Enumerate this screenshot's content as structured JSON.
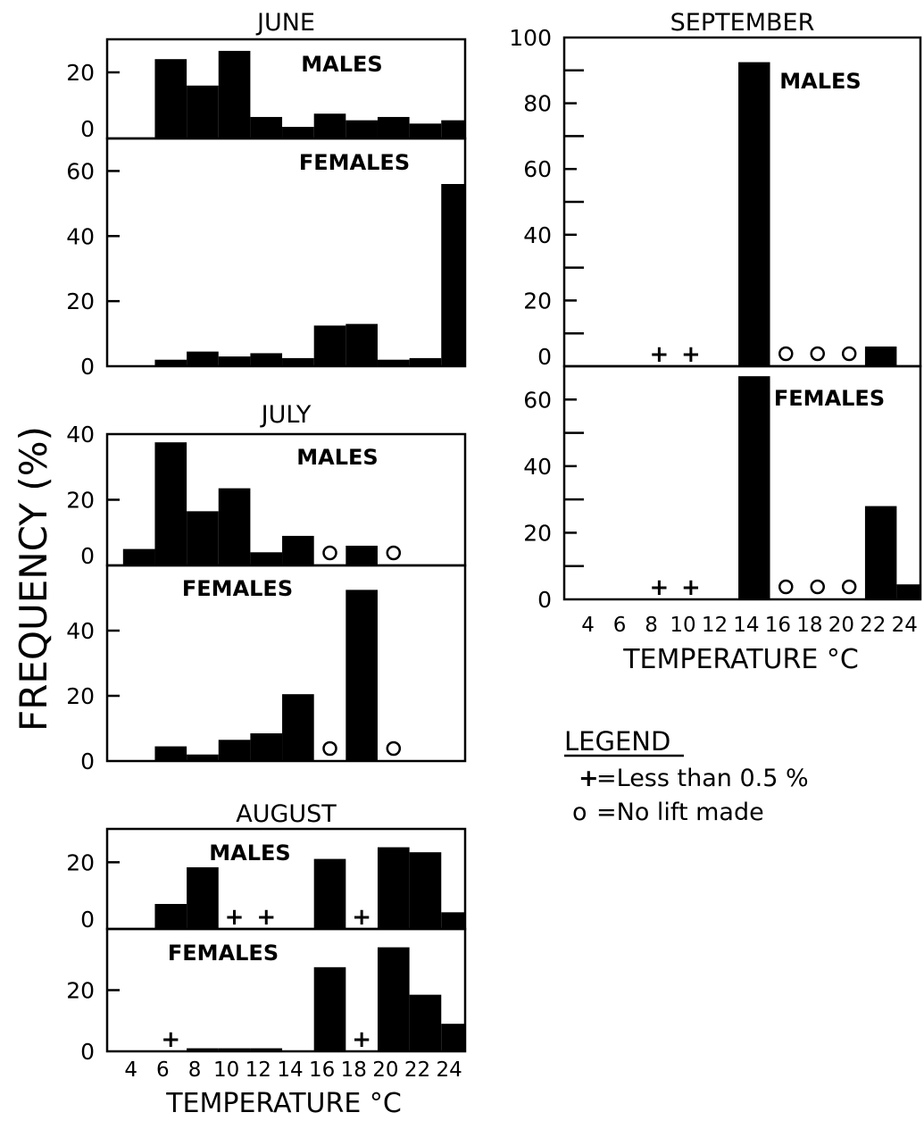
{
  "figure": {
    "ylabel": "FREQUENCY (%)",
    "xlabel": "TEMPERATURE °C",
    "legend": {
      "title": "LEGEND",
      "entries": [
        {
          "symbol": "+",
          "text": "=Less than 0.5 %"
        },
        {
          "symbol": "o",
          "text": "=No lift made"
        }
      ]
    },
    "colors": {
      "bars": "#000000",
      "background": "#ffffff"
    }
  },
  "chart_data": [
    {
      "type": "bar",
      "month": "JUNE",
      "x_ticks": [
        4,
        6,
        8,
        10,
        12,
        14,
        16,
        18,
        20,
        22,
        24
      ],
      "bar_width_c": 2,
      "panels": [
        {
          "label": "MALES",
          "ylim": [
            0,
            30
          ],
          "yticks": [
            0,
            20
          ],
          "bars": [
            {
              "x": 5,
              "value": 0
            },
            {
              "x": 7,
              "value": 24
            },
            {
              "x": 9,
              "value": 16
            },
            {
              "x": 11,
              "value": 26.5
            },
            {
              "x": 13,
              "value": 6.5
            },
            {
              "x": 15,
              "value": 3.5
            },
            {
              "x": 17,
              "value": 7.5
            },
            {
              "x": 19,
              "value": 5.5
            },
            {
              "x": 21,
              "value": 6.5
            },
            {
              "x": 23,
              "value": 4.5
            },
            {
              "x": 25,
              "value": 5.5
            }
          ],
          "markers": []
        },
        {
          "label": "FEMALES",
          "ylim": [
            0,
            70
          ],
          "yticks": [
            0,
            20,
            40,
            60
          ],
          "bars": [
            {
              "x": 5,
              "value": 0
            },
            {
              "x": 7,
              "value": 2
            },
            {
              "x": 9,
              "value": 4.5
            },
            {
              "x": 11,
              "value": 3
            },
            {
              "x": 13,
              "value": 4
            },
            {
              "x": 15,
              "value": 2.5
            },
            {
              "x": 17,
              "value": 12.5
            },
            {
              "x": 19,
              "value": 13
            },
            {
              "x": 21,
              "value": 2
            },
            {
              "x": 23,
              "value": 2.5
            },
            {
              "x": 25,
              "value": 56
            }
          ],
          "markers": []
        }
      ]
    },
    {
      "type": "bar",
      "month": "JULY",
      "x_ticks": [
        4,
        6,
        8,
        10,
        12,
        14,
        16,
        18,
        20,
        22,
        24
      ],
      "bar_width_c": 2,
      "panels": [
        {
          "label": "MALES",
          "ylim": [
            0,
            40
          ],
          "yticks": [
            0,
            20,
            40
          ],
          "bars": [
            {
              "x": 5,
              "value": 5
            },
            {
              "x": 7,
              "value": 37.5
            },
            {
              "x": 9,
              "value": 16.5
            },
            {
              "x": 11,
              "value": 23.5
            },
            {
              "x": 13,
              "value": 4
            },
            {
              "x": 15,
              "value": 9
            },
            {
              "x": 19,
              "value": 6
            }
          ],
          "markers": [
            {
              "x": 17,
              "symbol": "o"
            },
            {
              "x": 21,
              "symbol": "o"
            }
          ]
        },
        {
          "label": "FEMALES",
          "ylim": [
            0,
            60
          ],
          "yticks": [
            0,
            20,
            40
          ],
          "bars": [
            {
              "x": 5,
              "value": 0
            },
            {
              "x": 7,
              "value": 4.5
            },
            {
              "x": 9,
              "value": 2
            },
            {
              "x": 11,
              "value": 6.5
            },
            {
              "x": 13,
              "value": 8.5
            },
            {
              "x": 15,
              "value": 20.5
            },
            {
              "x": 19,
              "value": 52.5
            }
          ],
          "markers": [
            {
              "x": 17,
              "symbol": "o"
            },
            {
              "x": 21,
              "symbol": "o"
            }
          ]
        }
      ]
    },
    {
      "type": "bar",
      "month": "AUGUST",
      "x_ticks": [
        4,
        6,
        8,
        10,
        12,
        14,
        16,
        18,
        20,
        22,
        24
      ],
      "bar_width_c": 2,
      "panels": [
        {
          "label": "MALES",
          "ylim": [
            0,
            30
          ],
          "yticks": [
            0,
            20
          ],
          "bars": [
            {
              "x": 7,
              "value": 7.5
            },
            {
              "x": 9,
              "value": 18.5
            },
            {
              "x": 17,
              "value": 21
            },
            {
              "x": 21,
              "value": 24.5
            },
            {
              "x": 23,
              "value": 23
            },
            {
              "x": 25,
              "value": 5
            }
          ],
          "markers": [
            {
              "x": 11,
              "symbol": "+"
            },
            {
              "x": 13,
              "symbol": "+"
            },
            {
              "x": 19,
              "symbol": "+"
            }
          ]
        },
        {
          "label": "FEMALES",
          "ylim": [
            0,
            40
          ],
          "yticks": [
            0,
            20
          ],
          "bars": [
            {
              "x": 9,
              "value": 1
            },
            {
              "x": 11,
              "value": 1
            },
            {
              "x": 13,
              "value": 1
            },
            {
              "x": 17,
              "value": 27.5
            },
            {
              "x": 21,
              "value": 34
            },
            {
              "x": 23,
              "value": 18.5
            },
            {
              "x": 25,
              "value": 9
            }
          ],
          "markers": [
            {
              "x": 7,
              "symbol": "+"
            },
            {
              "x": 19,
              "symbol": "+"
            }
          ]
        }
      ]
    },
    {
      "type": "bar",
      "month": "SEPTEMBER",
      "x_ticks": [
        4,
        6,
        8,
        10,
        12,
        14,
        16,
        18,
        20,
        22,
        24
      ],
      "bar_width_c": 2,
      "panels": [
        {
          "label": "MALES",
          "ylim": [
            0,
            100
          ],
          "yticks": [
            0,
            20,
            40,
            60,
            80,
            100
          ],
          "bars": [
            {
              "x": 15,
              "value": 92.5
            },
            {
              "x": 23,
              "value": 6
            }
          ],
          "markers": [
            {
              "x": 9,
              "symbol": "+"
            },
            {
              "x": 11,
              "symbol": "+"
            },
            {
              "x": 17,
              "symbol": "o"
            },
            {
              "x": 19,
              "symbol": "o"
            },
            {
              "x": 21,
              "symbol": "o"
            }
          ]
        },
        {
          "label": "FEMALES",
          "ylim": [
            0,
            70
          ],
          "yticks": [
            0,
            20,
            40,
            60
          ],
          "bars": [
            {
              "x": 15,
              "value": 67
            },
            {
              "x": 23,
              "value": 28
            },
            {
              "x": 25,
              "value": 4.5
            }
          ],
          "markers": [
            {
              "x": 9,
              "symbol": "+"
            },
            {
              "x": 11,
              "symbol": "+"
            },
            {
              "x": 17,
              "symbol": "o"
            },
            {
              "x": 19,
              "symbol": "o"
            },
            {
              "x": 21,
              "symbol": "o"
            }
          ]
        }
      ]
    }
  ]
}
